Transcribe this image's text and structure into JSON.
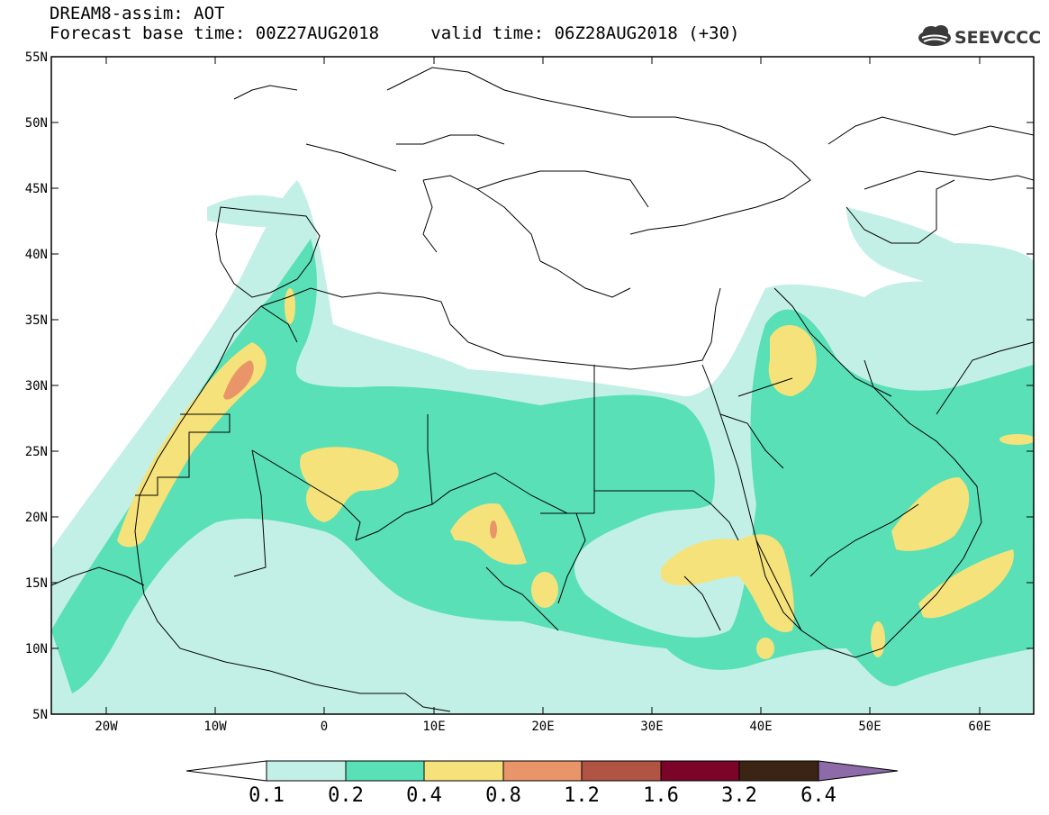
{
  "header": {
    "title": "DREAM8-assim: AOT",
    "forecast_base_label": "Forecast base time:",
    "forecast_base_time": "00Z27AUG2018",
    "valid_time_label": "valid time:",
    "valid_time": "06Z28AUG2018 (+30)",
    "logo_text": "SEEVCCC",
    "logo_icon": "cloud-icon"
  },
  "map": {
    "lon_range": [
      -25,
      65
    ],
    "lat_range": [
      5,
      55
    ],
    "lat_ticks": [
      "55N",
      "50N",
      "45N",
      "40N",
      "35N",
      "30N",
      "25N",
      "20N",
      "15N",
      "10N",
      "5N"
    ],
    "lon_ticks": [
      "20W",
      "10W",
      "0",
      "10E",
      "20E",
      "30E",
      "40E",
      "50E",
      "60E"
    ]
  },
  "colorbar": {
    "labels": [
      "0.1",
      "0.2",
      "0.4",
      "0.8",
      "1.2",
      "1.6",
      "3.2",
      "6.4"
    ],
    "colors": [
      "#ffffff",
      "#c3f0e6",
      "#5ae0b6",
      "#f5e27a",
      "#e99469",
      "#b25444",
      "#7a0528",
      "#3b2414",
      "#8d6aa8"
    ]
  }
}
